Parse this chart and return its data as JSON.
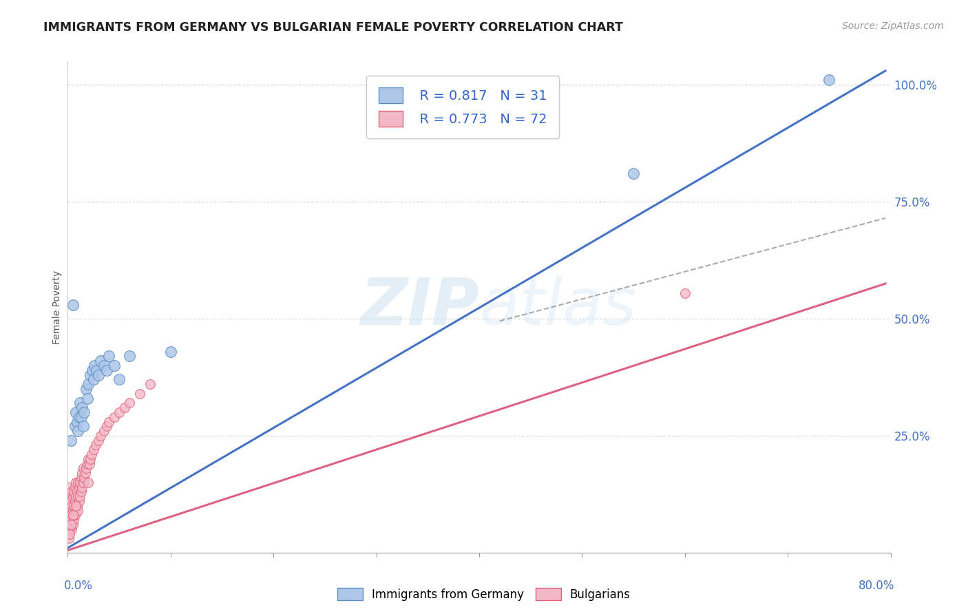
{
  "title": "IMMIGRANTS FROM GERMANY VS BULGARIAN FEMALE POVERTY CORRELATION CHART",
  "source": "Source: ZipAtlas.com",
  "ylabel": "Female Poverty",
  "series1_name": "Immigrants from Germany",
  "series1_color": "#adc6e8",
  "series1_edge_color": "#5b8ec4",
  "series2_name": "Bulgarians",
  "series2_color": "#f5b8c8",
  "series2_edge_color": "#e0607a",
  "legend_R_color": "#3366cc",
  "background_color": "#ffffff",
  "grid_color": "#cccccc",
  "xlim": [
    0.0,
    0.8
  ],
  "ylim": [
    0.0,
    1.05
  ],
  "yticks": [
    0.0,
    0.25,
    0.5,
    0.75,
    1.0
  ],
  "ytick_labels": [
    "",
    "25.0%",
    "50.0%",
    "75.0%",
    "100.0%"
  ],
  "blue_line_x": [
    0.0,
    0.795
  ],
  "blue_line_y": [
    0.01,
    1.03
  ],
  "pink_line_x": [
    0.0,
    0.795
  ],
  "pink_line_y": [
    0.005,
    0.575
  ],
  "gray_line_x": [
    0.42,
    0.795
  ],
  "gray_line_y": [
    0.495,
    0.715
  ],
  "blue_scatter_x": [
    0.003,
    0.005,
    0.007,
    0.008,
    0.009,
    0.01,
    0.011,
    0.012,
    0.013,
    0.014,
    0.015,
    0.016,
    0.018,
    0.019,
    0.02,
    0.022,
    0.024,
    0.025,
    0.026,
    0.028,
    0.03,
    0.032,
    0.035,
    0.038,
    0.04,
    0.045,
    0.05,
    0.06,
    0.1,
    0.55,
    0.74
  ],
  "blue_scatter_y": [
    0.24,
    0.53,
    0.27,
    0.3,
    0.28,
    0.26,
    0.29,
    0.32,
    0.29,
    0.31,
    0.27,
    0.3,
    0.35,
    0.33,
    0.36,
    0.38,
    0.39,
    0.37,
    0.4,
    0.39,
    0.38,
    0.41,
    0.4,
    0.39,
    0.42,
    0.4,
    0.37,
    0.42,
    0.43,
    0.81,
    1.01
  ],
  "pink_scatter_x": [
    0.001,
    0.001,
    0.001,
    0.001,
    0.001,
    0.002,
    0.002,
    0.002,
    0.002,
    0.003,
    0.003,
    0.003,
    0.004,
    0.004,
    0.004,
    0.004,
    0.005,
    0.005,
    0.005,
    0.006,
    0.006,
    0.006,
    0.007,
    0.007,
    0.007,
    0.008,
    0.008,
    0.008,
    0.009,
    0.009,
    0.01,
    0.01,
    0.01,
    0.011,
    0.011,
    0.012,
    0.012,
    0.013,
    0.013,
    0.014,
    0.014,
    0.015,
    0.015,
    0.016,
    0.017,
    0.018,
    0.019,
    0.02,
    0.021,
    0.022,
    0.023,
    0.025,
    0.027,
    0.03,
    0.032,
    0.035,
    0.038,
    0.04,
    0.045,
    0.05,
    0.055,
    0.06,
    0.07,
    0.08,
    0.001,
    0.001,
    0.002,
    0.003,
    0.005,
    0.008,
    0.02,
    0.6
  ],
  "pink_scatter_y": [
    0.04,
    0.06,
    0.08,
    0.1,
    0.14,
    0.05,
    0.07,
    0.09,
    0.12,
    0.06,
    0.08,
    0.11,
    0.05,
    0.07,
    0.1,
    0.13,
    0.06,
    0.09,
    0.12,
    0.07,
    0.1,
    0.13,
    0.08,
    0.11,
    0.14,
    0.09,
    0.12,
    0.15,
    0.1,
    0.13,
    0.09,
    0.12,
    0.15,
    0.11,
    0.14,
    0.12,
    0.15,
    0.13,
    0.16,
    0.14,
    0.17,
    0.15,
    0.18,
    0.16,
    0.17,
    0.18,
    0.19,
    0.2,
    0.19,
    0.2,
    0.21,
    0.22,
    0.23,
    0.24,
    0.25,
    0.26,
    0.27,
    0.28,
    0.29,
    0.3,
    0.31,
    0.32,
    0.34,
    0.36,
    0.03,
    0.05,
    0.04,
    0.06,
    0.08,
    0.1,
    0.15,
    0.555
  ]
}
